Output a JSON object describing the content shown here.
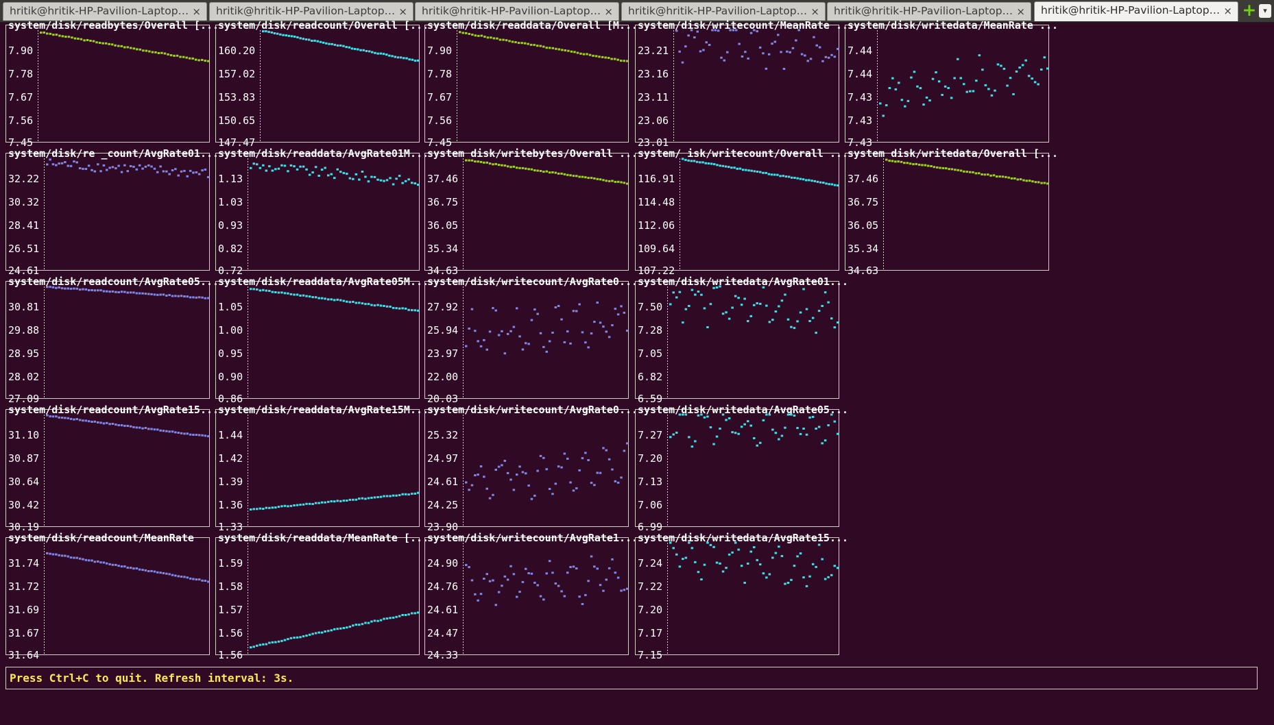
{
  "window": {
    "tabs": [
      {
        "label": "hritik@hritik-HP-Pavilion-Laptop-15...",
        "active": false
      },
      {
        "label": "hritik@hritik-HP-Pavilion-Laptop-15...",
        "active": false
      },
      {
        "label": "hritik@hritik-HP-Pavilion-Laptop-15...",
        "active": false
      },
      {
        "label": "hritik@hritik-HP-Pavilion-Laptop-15...",
        "active": false
      },
      {
        "label": "hritik@hritik-HP-Pavilion-Laptop-15-...",
        "active": false
      },
      {
        "label": "hritik@hritik-HP-Pavilion-Laptop-15-...",
        "active": true
      }
    ],
    "close_glyph": "×",
    "new_tab_glyph": "+",
    "menu_glyph": "▾",
    "new_tab_color": "#73d216"
  },
  "status_bar": {
    "text": "Press Ctrl+C to quit. Refresh interval: 3s.",
    "color": "#fce94f"
  },
  "colors": {
    "background": "#300a24",
    "series_yellow": "#9ad21e",
    "series_cyan": "#3ee0e8",
    "series_blue": "#7f86e6",
    "frame": "#d3d0ca"
  },
  "chart_data": [
    {
      "type": "scatter",
      "title": "system/disk/readbytes/Overall [...",
      "yticks": [
        "7.90",
        "7.78",
        "7.67",
        "7.56",
        "7.45"
      ],
      "ylim": [
        7.45,
        7.95
      ],
      "color": "yellow",
      "pattern": "trend",
      "start": 7.94,
      "end": 7.81
    },
    {
      "type": "scatter",
      "title": "system/disk/readcount/Overall [...",
      "yticks": [
        "160.20",
        "157.02",
        "153.83",
        "150.65",
        "147.47"
      ],
      "ylim": [
        147.47,
        162.0
      ],
      "color": "cyan",
      "pattern": "trend",
      "start": 161.9,
      "end": 158.0
    },
    {
      "type": "scatter",
      "title": "system/disk/readdata/Overall [M...",
      "yticks": [
        "7.90",
        "7.78",
        "7.67",
        "7.56",
        "7.45"
      ],
      "ylim": [
        7.45,
        7.95
      ],
      "color": "yellow",
      "pattern": "trend",
      "start": 7.94,
      "end": 7.81
    },
    {
      "type": "scatter",
      "title": "system/disk/writecount/MeanRate ...",
      "yticks": [
        "23.21",
        "23.16",
        "23.11",
        "23.06",
        "23.01"
      ],
      "ylim": [
        23.01,
        23.235
      ],
      "color": "blue",
      "pattern": "noisy",
      "start": 23.22,
      "end": 23.19
    },
    {
      "type": "scatter",
      "title": "system/disk/writedata/MeanRate ...",
      "yticks": [
        "7.44",
        "7.44",
        "7.43",
        "7.43",
        "7.43"
      ],
      "ylim": [
        7.428,
        7.442
      ],
      "color": "cyan",
      "pattern": "noisy",
      "start": 7.434,
      "end": 7.437
    },
    {
      "type": "scatter",
      "title": "system/disk/re _count/AvgRate01...",
      "yticks": [
        "32.22",
        "30.32",
        "28.41",
        "26.51",
        "24.61"
      ],
      "ylim": [
        24.61,
        33.3
      ],
      "color": "blue",
      "pattern": "flat",
      "start": 32.9,
      "end": 32.1
    },
    {
      "type": "scatter",
      "title": "system/disk/readdata/AvgRate01M...",
      "yticks": [
        "1.13",
        "1.03",
        "0.93",
        "0.82",
        "0.72"
      ],
      "ylim": [
        0.72,
        1.19
      ],
      "color": "cyan",
      "pattern": "flat",
      "start": 1.16,
      "end": 1.09
    },
    {
      "type": "scatter",
      "title": "system disk/writebytes/Overall ...",
      "yticks": [
        "37.46",
        "36.75",
        "36.05",
        "35.34",
        "34.63"
      ],
      "ylim": [
        34.63,
        37.95
      ],
      "color": "yellow",
      "pattern": "trend",
      "start": 37.9,
      "end": 37.2
    },
    {
      "type": "scatter",
      "title": "system/ isk/writecount/Overall ...",
      "yticks": [
        "116.91",
        "114.48",
        "112.06",
        "109.64",
        "107.22"
      ],
      "ylim": [
        107.22,
        118.8
      ],
      "color": "cyan",
      "pattern": "trend",
      "start": 118.7,
      "end": 116.0
    },
    {
      "type": "scatter",
      "title": "system disk/writedata/Overall [...",
      "yticks": [
        "37.46",
        "36.75",
        "36.05",
        "35.34",
        "34.63"
      ],
      "ylim": [
        34.63,
        37.95
      ],
      "color": "yellow",
      "pattern": "trend",
      "start": 37.9,
      "end": 37.2
    },
    {
      "type": "scatter",
      "title": "system/disk/readcount/AvgRate05...",
      "yticks": [
        "30.81",
        "29.88",
        "28.95",
        "28.02",
        "27.09"
      ],
      "ylim": [
        27.09,
        31.4
      ],
      "color": "blue",
      "pattern": "trend",
      "start": 31.38,
      "end": 30.95
    },
    {
      "type": "scatter",
      "title": "system/disk/readdata/AvgRate05M...",
      "yticks": [
        "1.05",
        "1.00",
        "0.95",
        "0.90",
        "0.86"
      ],
      "ylim": [
        0.86,
        1.09
      ],
      "color": "cyan",
      "pattern": "trend",
      "start": 1.085,
      "end": 1.04
    },
    {
      "type": "scatter",
      "title": "system/disk/writecount/AvgRate0...",
      "yticks": [
        "27.92",
        "25.94",
        "23.97",
        "22.00",
        "20.03"
      ],
      "ylim": [
        20.03,
        28.9
      ],
      "color": "blue",
      "pattern": "noisy",
      "start": 25.2,
      "end": 26.0
    },
    {
      "type": "scatter",
      "title": "system/disk/writedata/AvgRate01...",
      "yticks": [
        "7.50",
        "7.28",
        "7.05",
        "6.82",
        "6.59"
      ],
      "ylim": [
        6.59,
        7.64
      ],
      "color": "cyan",
      "pattern": "noisy",
      "start": 7.5,
      "end": 7.38
    },
    {
      "type": "scatter",
      "title": "system/disk/readcount/AvgRate15...",
      "yticks": [
        "31.10",
        "30.87",
        "30.64",
        "30.42",
        "30.19"
      ],
      "ylim": [
        30.19,
        31.26
      ],
      "color": "blue",
      "pattern": "trend",
      "start": 31.25,
      "end": 31.05
    },
    {
      "type": "scatter",
      "title": "system/disk/readdata/AvgRate15M...",
      "yticks": [
        "1.44",
        "1.42",
        "1.39",
        "1.36",
        "1.33"
      ],
      "ylim": [
        1.33,
        1.465
      ],
      "color": "cyan",
      "pattern": "rising",
      "start": 1.35,
      "end": 1.37
    },
    {
      "type": "scatter",
      "title": "system/disk/writecount/AvgRate0...",
      "yticks": [
        "25.32",
        "24.97",
        "24.61",
        "24.25",
        "23.90"
      ],
      "ylim": [
        23.9,
        25.6
      ],
      "color": "blue",
      "pattern": "noisy",
      "start": 24.6,
      "end": 24.8
    },
    {
      "type": "scatter",
      "title": "system/disk/writedata/AvgRate05...",
      "yticks": [
        "7.27",
        "7.20",
        "7.13",
        "7.06",
        "6.99"
      ],
      "ylim": [
        6.99,
        7.3
      ],
      "color": "cyan",
      "pattern": "noisy",
      "start": 7.28,
      "end": 7.26
    },
    {
      "type": "scatter",
      "title": "system/disk/readcount/MeanRate",
      "yticks": [
        "31.74",
        "31.72",
        "31.69",
        "31.67",
        "31.64"
      ],
      "ylim": [
        31.64,
        31.77
      ],
      "color": "blue",
      "pattern": "trend",
      "start": 31.758,
      "end": 31.725
    },
    {
      "type": "scatter",
      "title": "system/disk/readdata/MeanRate [...",
      "yticks": [
        "1.59",
        "1.58",
        "1.57",
        "1.56",
        "1.56"
      ],
      "ylim": [
        1.555,
        1.6
      ],
      "color": "cyan",
      "pattern": "rising",
      "start": 1.558,
      "end": 1.572
    },
    {
      "type": "scatter",
      "title": "system/disk/writecount/AvgRate1...",
      "yticks": [
        "24.90",
        "24.76",
        "24.61",
        "24.47",
        "24.33"
      ],
      "ylim": [
        24.33,
        25.03
      ],
      "color": "blue",
      "pattern": "noisy",
      "start": 24.75,
      "end": 24.82
    },
    {
      "type": "scatter",
      "title": "system/disk/writedata/AvgRate15...",
      "yticks": [
        "7.24",
        "7.22",
        "7.20",
        "7.17",
        "7.15"
      ],
      "ylim": [
        7.15,
        7.27
      ],
      "color": "cyan",
      "pattern": "noisy",
      "start": 7.26,
      "end": 7.24
    }
  ]
}
